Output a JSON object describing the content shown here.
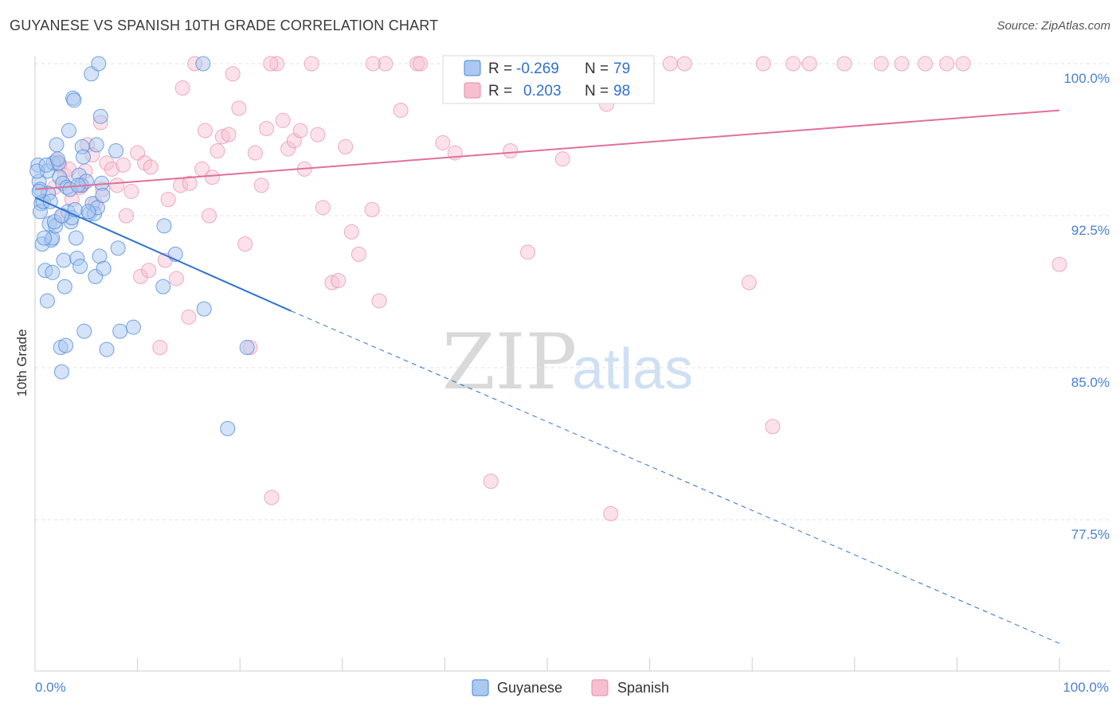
{
  "header": {
    "title": "GUYANESE VS SPANISH 10TH GRADE CORRELATION CHART",
    "source": "Source: ZipAtlas.com"
  },
  "watermark": {
    "zip": "ZIP",
    "atlas": "atlas"
  },
  "colors": {
    "guyanese_fill": "#aac8f0",
    "guyanese_stroke": "#4a86d8",
    "guyanese_line": "#2f73d0",
    "spanish_fill": "#f6bfd0",
    "spanish_stroke": "#e88aa8",
    "spanish_line": "#e0709a",
    "tick_text": "#4a7fd4"
  },
  "stats_legend": {
    "rows": [
      {
        "series": "Guyanese",
        "r_label": "R =",
        "r_value": "-0.269",
        "n_label": "N =",
        "n_value": "79"
      },
      {
        "series": "Spanish",
        "r_label": "R =",
        "r_value": "0.203",
        "n_label": "N =",
        "n_value": "98"
      }
    ]
  },
  "chart_data": {
    "type": "scatter",
    "title": "GUYANESE VS SPANISH 10TH GRADE CORRELATION CHART",
    "xlabel": "",
    "ylabel": "10th Grade",
    "xlim": [
      0,
      100
    ],
    "ylim": [
      71.2,
      100.7
    ],
    "x_tick_labels": [
      "0.0%",
      "100.0%"
    ],
    "y_ticks": [
      {
        "value": 100.0,
        "label": "100.0%"
      },
      {
        "value": 92.5,
        "label": "92.5%"
      },
      {
        "value": 85.0,
        "label": "85.0%"
      },
      {
        "value": 77.5,
        "label": "77.5%"
      }
    ],
    "legend": [
      "Guyanese",
      "Spanish"
    ],
    "series": [
      {
        "name": "Guyanese",
        "r": -0.269,
        "n": 79,
        "trend": {
          "x0": 0,
          "y0": 93.4,
          "x1": 25,
          "y1": 87.8,
          "dashed_to_x": 100,
          "dashed_to_y": 71.4
        },
        "points": [
          [
            0.3,
            95.0
          ],
          [
            0.4,
            94.2
          ],
          [
            0.5,
            93.8
          ],
          [
            0.6,
            93.1
          ],
          [
            0.5,
            92.7
          ],
          [
            0.7,
            91.1
          ],
          [
            1.0,
            89.8
          ],
          [
            1.2,
            88.3
          ],
          [
            1.2,
            94.7
          ],
          [
            1.3,
            93.6
          ],
          [
            1.4,
            92.1
          ],
          [
            1.6,
            91.3
          ],
          [
            1.7,
            91.4
          ],
          [
            1.7,
            89.7
          ],
          [
            1.8,
            95.1
          ],
          [
            2.0,
            92.0
          ],
          [
            2.1,
            96.0
          ],
          [
            2.3,
            95.1
          ],
          [
            2.4,
            94.4
          ],
          [
            2.5,
            86.0
          ],
          [
            2.6,
            84.8
          ],
          [
            2.7,
            94.1
          ],
          [
            2.8,
            90.3
          ],
          [
            2.9,
            89.0
          ],
          [
            3.0,
            86.1
          ],
          [
            3.1,
            93.9
          ],
          [
            3.2,
            92.7
          ],
          [
            3.3,
            96.7
          ],
          [
            3.5,
            92.2
          ],
          [
            3.6,
            92.4
          ],
          [
            3.7,
            98.3
          ],
          [
            3.8,
            98.2
          ],
          [
            4.0,
            91.4
          ],
          [
            4.1,
            90.4
          ],
          [
            4.3,
            94.5
          ],
          [
            4.4,
            90.0
          ],
          [
            4.5,
            94.0
          ],
          [
            4.6,
            95.9
          ],
          [
            4.7,
            95.4
          ],
          [
            4.8,
            86.8
          ],
          [
            5.0,
            94.2
          ],
          [
            5.3,
            92.6
          ],
          [
            5.5,
            99.5
          ],
          [
            5.6,
            93.1
          ],
          [
            5.8,
            92.6
          ],
          [
            5.9,
            89.5
          ],
          [
            6.0,
            96.0
          ],
          [
            6.1,
            92.9
          ],
          [
            6.2,
            100.0
          ],
          [
            6.3,
            90.5
          ],
          [
            6.4,
            97.4
          ],
          [
            6.5,
            94.1
          ],
          [
            6.6,
            93.5
          ],
          [
            6.7,
            89.9
          ],
          [
            7.0,
            85.9
          ],
          [
            7.9,
            95.7
          ],
          [
            8.1,
            90.9
          ],
          [
            8.3,
            86.8
          ],
          [
            9.6,
            87.0
          ],
          [
            12.5,
            89.0
          ],
          [
            12.6,
            92.0
          ],
          [
            13.7,
            90.6
          ],
          [
            16.4,
            100.0
          ],
          [
            16.5,
            87.9
          ],
          [
            18.8,
            82.0
          ],
          [
            20.7,
            86.0
          ],
          [
            0.2,
            94.7
          ],
          [
            0.8,
            93.2
          ],
          [
            1.1,
            95.0
          ],
          [
            1.9,
            92.2
          ],
          [
            2.2,
            95.3
          ],
          [
            3.4,
            93.8
          ],
          [
            4.2,
            94.0
          ],
          [
            0.9,
            91.4
          ],
          [
            1.5,
            93.2
          ],
          [
            2.6,
            92.5
          ],
          [
            3.9,
            92.8
          ],
          [
            5.2,
            92.7
          ],
          [
            0.4,
            93.7
          ]
        ]
      },
      {
        "name": "Spanish",
        "r": 0.203,
        "n": 98,
        "trend": {
          "x0": 0,
          "y0": 93.8,
          "x1": 100,
          "y1": 97.7
        },
        "points": [
          [
            1.9,
            93.9
          ],
          [
            2.1,
            95.2
          ],
          [
            2.4,
            95.0
          ],
          [
            2.7,
            92.5
          ],
          [
            2.9,
            94.5
          ],
          [
            3.3,
            94.8
          ],
          [
            3.6,
            93.3
          ],
          [
            4.4,
            93.9
          ],
          [
            4.6,
            94.0
          ],
          [
            4.9,
            94.7
          ],
          [
            5.1,
            96.0
          ],
          [
            5.6,
            95.5
          ],
          [
            5.9,
            93.1
          ],
          [
            6.4,
            97.1
          ],
          [
            6.6,
            93.8
          ],
          [
            7.0,
            95.1
          ],
          [
            7.5,
            94.8
          ],
          [
            8.0,
            94.0
          ],
          [
            8.6,
            95.0
          ],
          [
            8.9,
            92.5
          ],
          [
            9.4,
            93.7
          ],
          [
            10.0,
            95.6
          ],
          [
            10.3,
            89.5
          ],
          [
            10.7,
            95.1
          ],
          [
            11.1,
            89.8
          ],
          [
            11.3,
            94.9
          ],
          [
            12.2,
            86.0
          ],
          [
            12.7,
            90.3
          ],
          [
            13.0,
            93.3
          ],
          [
            13.8,
            89.4
          ],
          [
            14.2,
            94.0
          ],
          [
            14.4,
            98.8
          ],
          [
            15.0,
            87.5
          ],
          [
            15.1,
            94.1
          ],
          [
            15.6,
            100.0
          ],
          [
            16.3,
            94.8
          ],
          [
            16.6,
            96.7
          ],
          [
            17.0,
            92.5
          ],
          [
            17.3,
            94.4
          ],
          [
            17.8,
            95.7
          ],
          [
            18.3,
            96.4
          ],
          [
            18.9,
            96.5
          ],
          [
            19.3,
            99.5
          ],
          [
            19.9,
            97.8
          ],
          [
            20.5,
            91.1
          ],
          [
            21.0,
            86.0
          ],
          [
            21.5,
            95.6
          ],
          [
            22.1,
            94.0
          ],
          [
            22.6,
            96.8
          ],
          [
            23.1,
            78.6
          ],
          [
            23.6,
            100.0
          ],
          [
            24.2,
            97.2
          ],
          [
            24.7,
            95.8
          ],
          [
            25.3,
            96.2
          ],
          [
            25.9,
            96.7
          ],
          [
            26.3,
            94.8
          ],
          [
            27.0,
            100.0
          ],
          [
            27.6,
            96.5
          ],
          [
            28.1,
            92.9
          ],
          [
            29.0,
            89.2
          ],
          [
            29.6,
            89.3
          ],
          [
            30.3,
            95.9
          ],
          [
            30.9,
            91.7
          ],
          [
            31.6,
            90.6
          ],
          [
            32.9,
            92.8
          ],
          [
            33.6,
            88.3
          ],
          [
            34.2,
            100.0
          ],
          [
            35.7,
            97.7
          ],
          [
            37.3,
            100.0
          ],
          [
            39.8,
            96.1
          ],
          [
            41.0,
            95.6
          ],
          [
            43.2,
            100.0
          ],
          [
            44.5,
            79.4
          ],
          [
            45.6,
            100.0
          ],
          [
            46.4,
            95.7
          ],
          [
            48.1,
            90.7
          ],
          [
            51.5,
            95.3
          ],
          [
            55.8,
            98.0
          ],
          [
            56.2,
            77.8
          ],
          [
            57.6,
            100.0
          ],
          [
            63.4,
            100.0
          ],
          [
            69.7,
            89.2
          ],
          [
            71.1,
            100.0
          ],
          [
            72.0,
            82.1
          ],
          [
            74.0,
            100.0
          ],
          [
            75.6,
            100.0
          ],
          [
            79.0,
            100.0
          ],
          [
            82.6,
            100.0
          ],
          [
            84.6,
            100.0
          ],
          [
            86.9,
            100.0
          ],
          [
            89.0,
            100.0
          ],
          [
            90.6,
            100.0
          ],
          [
            100.0,
            90.1
          ],
          [
            23.0,
            100.0
          ],
          [
            33.0,
            100.0
          ],
          [
            37.6,
            100.0
          ],
          [
            50.0,
            100.0
          ],
          [
            62.0,
            100.0
          ]
        ]
      }
    ]
  },
  "bottom_legend": [
    {
      "series": "Guyanese",
      "label": "Guyanese"
    },
    {
      "series": "Spanish",
      "label": "Spanish"
    }
  ]
}
